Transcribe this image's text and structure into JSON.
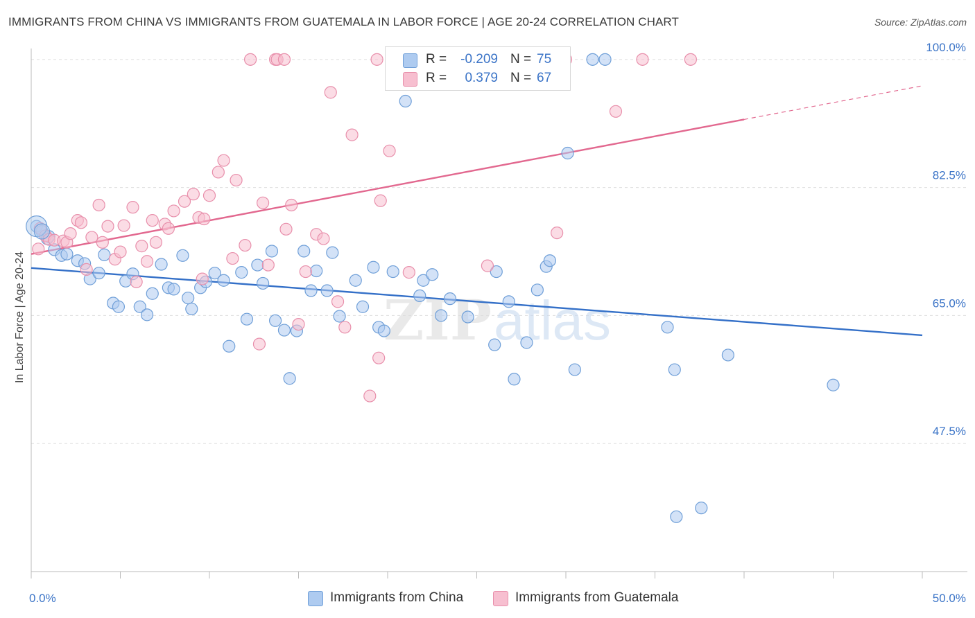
{
  "title": "IMMIGRANTS FROM CHINA VS IMMIGRANTS FROM GUATEMALA IN LABOR FORCE | AGE 20-24 CORRELATION CHART",
  "source": "Source: ZipAtlas.com",
  "watermark": {
    "zip": "ZIP",
    "atlas": "atlas"
  },
  "colors": {
    "china_fill": "#aecbf0",
    "china_stroke": "#6f9fd8",
    "china_line": "#3470c8",
    "guatemala_fill": "#f7bfd0",
    "guatemala_stroke": "#e88fab",
    "guatemala_line": "#e2688f",
    "tick_label": "#3b74c7",
    "grid": "#dddddd"
  },
  "legend": {
    "rows": [
      {
        "r_label": "R =",
        "r_value": "-0.209",
        "n_label": "N =",
        "n_value": "75"
      },
      {
        "r_label": "R =",
        "r_value": "0.379",
        "n_label": "N =",
        "n_value": "67"
      }
    ]
  },
  "bottom_legend": {
    "china": "Immigrants from China",
    "guatemala": "Immigrants from Guatemala"
  },
  "chart_data": {
    "type": "scatter",
    "ylabel": "In Labor Force | Age 20-24",
    "xlim": [
      0,
      50
    ],
    "ylim": [
      30,
      101.5
    ],
    "x_tick_labels": [
      "0.0%",
      "50.0%"
    ],
    "y_ticks": [
      47.5,
      65.0,
      82.5,
      100.0
    ],
    "y_tick_labels": [
      "47.5%",
      "65.0%",
      "82.5%",
      "100.0%"
    ],
    "grid": true,
    "series": [
      {
        "name": "Immigrants from China",
        "color": "#aecbf0",
        "trend": {
          "x": [
            0,
            50
          ],
          "y": [
            71.5,
            62.3
          ]
        },
        "points": [
          [
            0.3,
            77.2
          ],
          [
            0.6,
            76.5
          ],
          [
            0.9,
            75.5
          ],
          [
            1.0,
            75.8
          ],
          [
            1.3,
            74.0
          ],
          [
            1.7,
            73.2
          ],
          [
            2.0,
            73.4
          ],
          [
            2.6,
            72.5
          ],
          [
            3.0,
            72.1
          ],
          [
            3.3,
            70.0
          ],
          [
            3.8,
            70.8
          ],
          [
            4.1,
            73.3
          ],
          [
            4.6,
            66.7
          ],
          [
            4.9,
            66.2
          ],
          [
            5.3,
            69.7
          ],
          [
            5.7,
            70.7
          ],
          [
            6.1,
            66.2
          ],
          [
            6.5,
            65.1
          ],
          [
            6.8,
            68.0
          ],
          [
            7.3,
            72.0
          ],
          [
            7.7,
            68.8
          ],
          [
            8.0,
            68.6
          ],
          [
            8.5,
            73.2
          ],
          [
            8.8,
            67.4
          ],
          [
            9.0,
            65.9
          ],
          [
            9.5,
            68.8
          ],
          [
            9.8,
            69.6
          ],
          [
            10.3,
            70.8
          ],
          [
            10.8,
            69.8
          ],
          [
            11.1,
            60.8
          ],
          [
            11.8,
            70.9
          ],
          [
            12.1,
            64.5
          ],
          [
            12.7,
            71.9
          ],
          [
            13.0,
            69.4
          ],
          [
            13.5,
            73.8
          ],
          [
            13.7,
            64.3
          ],
          [
            14.2,
            63.0
          ],
          [
            14.5,
            56.4
          ],
          [
            14.9,
            62.9
          ],
          [
            15.3,
            73.8
          ],
          [
            15.7,
            68.4
          ],
          [
            16.0,
            71.1
          ],
          [
            16.6,
            68.4
          ],
          [
            16.9,
            73.6
          ],
          [
            17.3,
            64.9
          ],
          [
            18.2,
            69.8
          ],
          [
            18.6,
            66.2
          ],
          [
            19.2,
            71.6
          ],
          [
            19.5,
            63.4
          ],
          [
            19.8,
            62.9
          ],
          [
            20.3,
            71.0
          ],
          [
            21.8,
            67.7
          ],
          [
            21.0,
            94.3
          ],
          [
            22.0,
            69.8
          ],
          [
            22.5,
            70.6
          ],
          [
            23.0,
            65.0
          ],
          [
            23.5,
            67.3
          ],
          [
            24.5,
            64.8
          ],
          [
            26.0,
            61.0
          ],
          [
            26.1,
            71.0
          ],
          [
            26.8,
            66.9
          ],
          [
            27.1,
            56.3
          ],
          [
            27.8,
            61.3
          ],
          [
            28.4,
            68.5
          ],
          [
            28.9,
            71.7
          ],
          [
            29.1,
            72.5
          ],
          [
            30.1,
            87.2
          ],
          [
            30.5,
            57.6
          ],
          [
            31.5,
            100.0
          ],
          [
            32.2,
            100.0
          ],
          [
            35.7,
            63.4
          ],
          [
            36.1,
            57.6
          ],
          [
            37.6,
            38.7
          ],
          [
            39.1,
            59.6
          ],
          [
            36.2,
            37.5
          ],
          [
            45.0,
            55.5
          ]
        ]
      },
      {
        "name": "Immigrants from Guatemala",
        "color": "#f7bfd0",
        "trend": {
          "x": [
            0,
            40
          ],
          "y": [
            73.4,
            91.8
          ],
          "dashed_to": {
            "x": 50,
            "y": 96.4
          }
        },
        "points": [
          [
            0.4,
            74.1
          ],
          [
            0.5,
            76.9
          ],
          [
            0.8,
            75.9
          ],
          [
            1.0,
            75.4
          ],
          [
            1.3,
            75.3
          ],
          [
            1.8,
            75.2
          ],
          [
            2.0,
            75.0
          ],
          [
            2.2,
            76.2
          ],
          [
            2.6,
            78.0
          ],
          [
            2.8,
            77.7
          ],
          [
            3.1,
            71.3
          ],
          [
            3.4,
            75.7
          ],
          [
            3.8,
            80.1
          ],
          [
            4.0,
            75.0
          ],
          [
            4.3,
            77.2
          ],
          [
            4.7,
            72.7
          ],
          [
            5.0,
            73.7
          ],
          [
            5.2,
            77.3
          ],
          [
            5.7,
            79.8
          ],
          [
            5.9,
            69.6
          ],
          [
            6.2,
            74.5
          ],
          [
            6.5,
            72.4
          ],
          [
            6.8,
            78.0
          ],
          [
            7.0,
            75.0
          ],
          [
            7.5,
            77.5
          ],
          [
            7.7,
            76.9
          ],
          [
            8.0,
            79.3
          ],
          [
            8.6,
            80.6
          ],
          [
            9.1,
            81.6
          ],
          [
            9.4,
            78.4
          ],
          [
            9.6,
            70.0
          ],
          [
            9.7,
            78.2
          ],
          [
            10.0,
            81.4
          ],
          [
            10.5,
            84.6
          ],
          [
            10.8,
            86.2
          ],
          [
            11.3,
            72.8
          ],
          [
            11.5,
            83.5
          ],
          [
            12.0,
            74.6
          ],
          [
            12.3,
            100.0
          ],
          [
            12.8,
            61.1
          ],
          [
            13.0,
            80.4
          ],
          [
            13.3,
            71.9
          ],
          [
            13.7,
            100.0
          ],
          [
            13.8,
            100.0
          ],
          [
            14.2,
            100.0
          ],
          [
            14.3,
            76.8
          ],
          [
            14.6,
            80.1
          ],
          [
            15.0,
            63.8
          ],
          [
            15.4,
            71.0
          ],
          [
            16.0,
            76.1
          ],
          [
            16.4,
            75.5
          ],
          [
            16.8,
            95.5
          ],
          [
            17.2,
            66.9
          ],
          [
            17.6,
            63.4
          ],
          [
            18.0,
            89.7
          ],
          [
            19.0,
            54.0
          ],
          [
            19.4,
            100.0
          ],
          [
            19.5,
            59.2
          ],
          [
            19.6,
            80.7
          ],
          [
            20.1,
            87.5
          ],
          [
            21.2,
            70.9
          ],
          [
            25.6,
            71.8
          ],
          [
            29.5,
            76.3
          ],
          [
            30.0,
            100.0
          ],
          [
            32.8,
            92.9
          ],
          [
            34.3,
            100.0
          ],
          [
            37.0,
            100.0
          ]
        ]
      }
    ]
  }
}
